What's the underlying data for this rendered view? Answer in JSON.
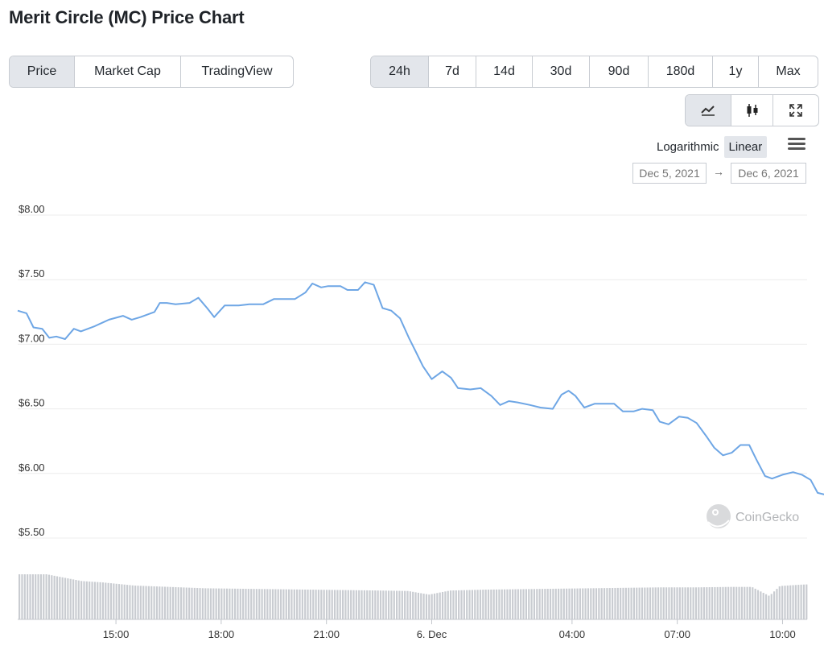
{
  "title": "Merit Circle (MC) Price Chart",
  "tabs": [
    {
      "label": "Price",
      "active": true
    },
    {
      "label": "Market Cap",
      "active": false
    },
    {
      "label": "TradingView",
      "active": false
    }
  ],
  "ranges": [
    {
      "label": "24h",
      "active": true
    },
    {
      "label": "7d",
      "active": false
    },
    {
      "label": "14d",
      "active": false
    },
    {
      "label": "30d",
      "active": false
    },
    {
      "label": "90d",
      "active": false
    },
    {
      "label": "180d",
      "active": false
    },
    {
      "label": "1y",
      "active": false
    },
    {
      "label": "Max",
      "active": false
    }
  ],
  "chart_types": [
    {
      "icon": "line-chart-icon",
      "active": true
    },
    {
      "icon": "candlestick-icon",
      "active": false
    },
    {
      "icon": "fullscreen-icon",
      "active": false
    }
  ],
  "scale": {
    "log_label": "Logarithmic",
    "linear_label": "Linear",
    "active": "Linear"
  },
  "date_range": {
    "from": "Dec 5, 2021",
    "arrow": "→",
    "to": "Dec 6, 2021"
  },
  "watermark": "CoinGecko",
  "colors": {
    "line": "#6ea6e5",
    "volume": "#c9ccd1",
    "grid": "#ececec",
    "active_button": "#e3e6eb"
  },
  "chart_data": {
    "type": "line",
    "ylim": [
      5.5,
      8.0
    ],
    "y_ticks": [
      {
        "label": "$8.00",
        "value": 8.0
      },
      {
        "label": "$7.50",
        "value": 7.5
      },
      {
        "label": "$7.00",
        "value": 7.0
      },
      {
        "label": "$6.50",
        "value": 6.5
      },
      {
        "label": "$6.00",
        "value": 6.0
      },
      {
        "label": "$5.50",
        "value": 5.5
      }
    ],
    "x_range_hours": [
      12.2,
      34.7
    ],
    "x_ticks": [
      {
        "label": "15:00",
        "t": 15.0
      },
      {
        "label": "18:00",
        "t": 18.0
      },
      {
        "label": "21:00",
        "t": 21.0
      },
      {
        "label": "6. Dec",
        "t": 24.0
      },
      {
        "label": "04:00",
        "t": 28.0
      },
      {
        "label": "07:00",
        "t": 31.0
      },
      {
        "label": "10:00",
        "t": 34.0
      }
    ],
    "price": [
      [
        12.2,
        7.26
      ],
      [
        12.45,
        7.24
      ],
      [
        12.65,
        7.13
      ],
      [
        12.9,
        7.12
      ],
      [
        13.1,
        7.05
      ],
      [
        13.3,
        7.06
      ],
      [
        13.55,
        7.04
      ],
      [
        13.8,
        7.12
      ],
      [
        14.0,
        7.1
      ],
      [
        14.4,
        7.14
      ],
      [
        14.8,
        7.19
      ],
      [
        15.2,
        7.22
      ],
      [
        15.45,
        7.19
      ],
      [
        15.7,
        7.21
      ],
      [
        16.1,
        7.25
      ],
      [
        16.25,
        7.32
      ],
      [
        16.45,
        7.32
      ],
      [
        16.7,
        7.31
      ],
      [
        17.1,
        7.32
      ],
      [
        17.35,
        7.36
      ],
      [
        17.6,
        7.28
      ],
      [
        17.8,
        7.21
      ],
      [
        18.1,
        7.3
      ],
      [
        18.5,
        7.3
      ],
      [
        18.8,
        7.31
      ],
      [
        19.2,
        7.31
      ],
      [
        19.5,
        7.35
      ],
      [
        19.8,
        7.35
      ],
      [
        20.1,
        7.35
      ],
      [
        20.4,
        7.4
      ],
      [
        20.6,
        7.47
      ],
      [
        20.85,
        7.44
      ],
      [
        21.05,
        7.45
      ],
      [
        21.4,
        7.45
      ],
      [
        21.6,
        7.42
      ],
      [
        21.9,
        7.42
      ],
      [
        22.1,
        7.48
      ],
      [
        22.35,
        7.46
      ],
      [
        22.6,
        7.28
      ],
      [
        22.85,
        7.26
      ],
      [
        23.1,
        7.2
      ],
      [
        23.35,
        7.05
      ],
      [
        23.55,
        6.94
      ],
      [
        23.75,
        6.83
      ],
      [
        24.0,
        6.73
      ],
      [
        24.3,
        6.79
      ],
      [
        24.55,
        6.74
      ],
      [
        24.75,
        6.66
      ],
      [
        25.1,
        6.65
      ],
      [
        25.4,
        6.66
      ],
      [
        25.7,
        6.6
      ],
      [
        25.95,
        6.53
      ],
      [
        26.2,
        6.56
      ],
      [
        26.45,
        6.55
      ],
      [
        26.8,
        6.53
      ],
      [
        27.1,
        6.51
      ],
      [
        27.45,
        6.5
      ],
      [
        27.7,
        6.61
      ],
      [
        27.9,
        6.64
      ],
      [
        28.1,
        6.6
      ],
      [
        28.35,
        6.51
      ],
      [
        28.65,
        6.54
      ],
      [
        28.9,
        6.54
      ],
      [
        29.2,
        6.54
      ],
      [
        29.45,
        6.48
      ],
      [
        29.75,
        6.48
      ],
      [
        30.0,
        6.5
      ],
      [
        30.3,
        6.49
      ],
      [
        30.5,
        6.4
      ],
      [
        30.75,
        6.38
      ],
      [
        31.05,
        6.44
      ],
      [
        31.3,
        6.43
      ],
      [
        31.55,
        6.39
      ],
      [
        31.85,
        6.28
      ],
      [
        32.05,
        6.2
      ],
      [
        32.3,
        6.14
      ],
      [
        32.55,
        6.16
      ],
      [
        32.8,
        6.22
      ],
      [
        33.05,
        6.22
      ],
      [
        33.25,
        6.11
      ],
      [
        33.5,
        5.98
      ],
      [
        33.7,
        5.96
      ],
      [
        34.0,
        5.99
      ],
      [
        34.3,
        6.01
      ],
      [
        34.55,
        5.99
      ],
      [
        34.8,
        5.95
      ],
      [
        35.0,
        5.85
      ],
      [
        35.3,
        5.83
      ],
      [
        35.55,
        5.83
      ],
      [
        35.85,
        5.85
      ],
      [
        36.05,
        5.78
      ],
      [
        36.3,
        5.76
      ],
      [
        36.55,
        5.82
      ],
      [
        36.8,
        5.83
      ]
    ],
    "volume_relative": [
      [
        12.2,
        1.0
      ],
      [
        13.0,
        1.0
      ],
      [
        14.0,
        0.85
      ],
      [
        14.6,
        0.82
      ],
      [
        15.5,
        0.75
      ],
      [
        16.5,
        0.72
      ],
      [
        17.5,
        0.69
      ],
      [
        18.5,
        0.68
      ],
      [
        19.5,
        0.67
      ],
      [
        20.5,
        0.66
      ],
      [
        21.5,
        0.65
      ],
      [
        22.5,
        0.64
      ],
      [
        23.3,
        0.63
      ],
      [
        23.9,
        0.55
      ],
      [
        24.5,
        0.64
      ],
      [
        25.5,
        0.66
      ],
      [
        26.5,
        0.67
      ],
      [
        27.5,
        0.68
      ],
      [
        28.5,
        0.69
      ],
      [
        29.5,
        0.7
      ],
      [
        30.5,
        0.71
      ],
      [
        31.5,
        0.71
      ],
      [
        32.5,
        0.72
      ],
      [
        33.1,
        0.72
      ],
      [
        33.6,
        0.52
      ],
      [
        33.9,
        0.74
      ],
      [
        34.5,
        0.77
      ],
      [
        35.5,
        0.8
      ],
      [
        36.8,
        0.82
      ]
    ]
  }
}
